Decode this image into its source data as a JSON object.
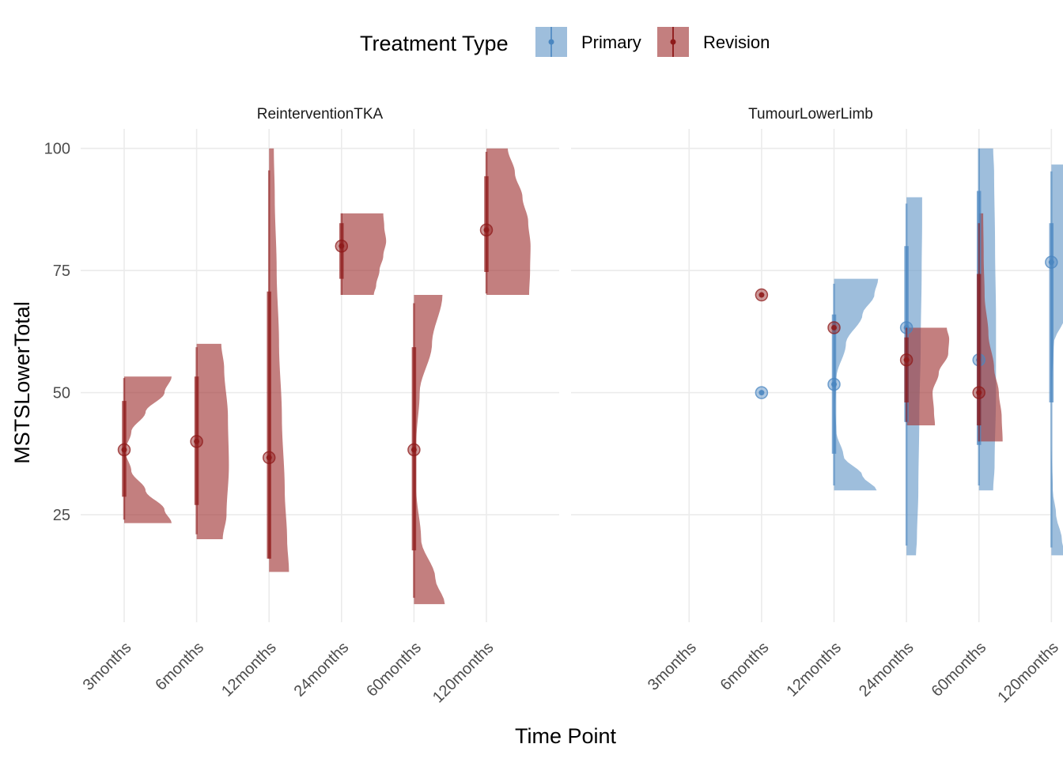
{
  "legend": {
    "title": "Treatment Type",
    "items": [
      {
        "label": "Primary",
        "color": "#4a86c0"
      },
      {
        "label": "Revision",
        "color": "#8e1a1a"
      }
    ]
  },
  "axes": {
    "xlabel": "Time Point",
    "ylabel": "MSTSLowerTotal"
  },
  "chart_data": {
    "type": "violin",
    "x_categories": [
      "3months",
      "6months",
      "12months",
      "24months",
      "60months",
      "120months"
    ],
    "ylim": [
      3,
      104
    ],
    "yticks": [
      25,
      50,
      75,
      100
    ],
    "grid": true,
    "legend_position": "top",
    "panels": [
      {
        "title": "ReinterventionTKA",
        "series": [
          {
            "name": "Revision",
            "groups": [
              {
                "category": "3months",
                "median": 38.3,
                "iqr": [
                  28.7,
                  48.3
                ],
                "range": [
                  24,
                  53
                ],
                "violin_range": [
                  23.3,
                  53.3
                ],
                "density": [
                  [
                    23.3,
                    1.0
                  ],
                  [
                    26,
                    0.85
                  ],
                  [
                    30,
                    0.45
                  ],
                  [
                    34,
                    0.15
                  ],
                  [
                    38,
                    0.02
                  ],
                  [
                    42,
                    0.15
                  ],
                  [
                    46,
                    0.45
                  ],
                  [
                    50,
                    0.85
                  ],
                  [
                    53.3,
                    1.0
                  ]
                ]
              },
              {
                "category": "6months",
                "median": 40,
                "iqr": [
                  27,
                  53.3
                ],
                "range": [
                  21,
                  59.3
                ],
                "violin_range": [
                  20,
                  60
                ],
                "density": [
                  [
                    20,
                    0.55
                  ],
                  [
                    25,
                    0.63
                  ],
                  [
                    35,
                    0.68
                  ],
                  [
                    45,
                    0.66
                  ],
                  [
                    55,
                    0.58
                  ],
                  [
                    60,
                    0.52
                  ]
                ]
              },
              {
                "category": "12months",
                "median": 36.7,
                "iqr": [
                  16,
                  70.7
                ],
                "range": [
                  16,
                  95.5
                ],
                "violin_range": [
                  13.3,
                  100
                ],
                "density": [
                  [
                    13.3,
                    0.42
                  ],
                  [
                    20,
                    0.38
                  ],
                  [
                    30,
                    0.33
                  ],
                  [
                    45,
                    0.27
                  ],
                  [
                    60,
                    0.21
                  ],
                  [
                    75,
                    0.16
                  ],
                  [
                    90,
                    0.12
                  ],
                  [
                    100,
                    0.1
                  ]
                ]
              },
              {
                "category": "24months",
                "median": 80,
                "iqr": [
                  73.3,
                  84.7
                ],
                "range": [
                  70,
                  86.7
                ],
                "violin_range": [
                  70,
                  86.7
                ],
                "density": [
                  [
                    70,
                    0.68
                  ],
                  [
                    72,
                    0.73
                  ],
                  [
                    75,
                    0.8
                  ],
                  [
                    78,
                    0.88
                  ],
                  [
                    81,
                    0.94
                  ],
                  [
                    84,
                    0.9
                  ],
                  [
                    86.7,
                    0.88
                  ]
                ]
              },
              {
                "category": "60months",
                "median": 38.3,
                "iqr": [
                  17.7,
                  59.3
                ],
                "range": [
                  8,
                  68.3
                ],
                "violin_range": [
                  6.7,
                  70
                ],
                "density": [
                  [
                    6.7,
                    0.65
                  ],
                  [
                    12,
                    0.45
                  ],
                  [
                    20,
                    0.15
                  ],
                  [
                    30,
                    0.05
                  ],
                  [
                    40,
                    0.05
                  ],
                  [
                    50,
                    0.12
                  ],
                  [
                    60,
                    0.38
                  ],
                  [
                    70,
                    0.6
                  ]
                ]
              },
              {
                "category": "120months",
                "median": 83.3,
                "iqr": [
                  74.7,
                  94.3
                ],
                "range": [
                  70.3,
                  99.3
                ],
                "violin_range": [
                  70,
                  100
                ],
                "density": [
                  [
                    70,
                    0.9
                  ],
                  [
                    75,
                    0.92
                  ],
                  [
                    80,
                    0.93
                  ],
                  [
                    85,
                    0.88
                  ],
                  [
                    90,
                    0.76
                  ],
                  [
                    95,
                    0.6
                  ],
                  [
                    100,
                    0.45
                  ]
                ]
              }
            ]
          }
        ]
      },
      {
        "title": "TumourLowerLimb",
        "series": [
          {
            "name": "Primary",
            "groups": [
              {
                "category": "6months",
                "median": 50,
                "iqr": [
                  50,
                  50
                ],
                "range": [
                  50,
                  50
                ]
              },
              {
                "category": "12months",
                "median": 51.7,
                "iqr": [
                  37.5,
                  66
                ],
                "range": [
                  31,
                  72.3
                ],
                "violin_range": [
                  30,
                  73.3
                ],
                "density": [
                  [
                    30,
                    0.9
                  ],
                  [
                    33,
                    0.6
                  ],
                  [
                    37,
                    0.2
                  ],
                  [
                    42,
                    0.05
                  ],
                  [
                    47,
                    0.02
                  ],
                  [
                    53,
                    0.05
                  ],
                  [
                    60,
                    0.25
                  ],
                  [
                    66,
                    0.6
                  ],
                  [
                    70,
                    0.85
                  ],
                  [
                    73.3,
                    0.93
                  ]
                ]
              },
              {
                "category": "24months",
                "median": 63.3,
                "iqr": [
                  44,
                  80
                ],
                "range": [
                  18.7,
                  88.7
                ],
                "violin_range": [
                  16.7,
                  90
                ],
                "density": [
                  [
                    16.7,
                    0.2
                  ],
                  [
                    20,
                    0.22
                  ],
                  [
                    30,
                    0.25
                  ],
                  [
                    45,
                    0.27
                  ],
                  [
                    60,
                    0.3
                  ],
                  [
                    75,
                    0.32
                  ],
                  [
                    85,
                    0.33
                  ],
                  [
                    90,
                    0.33
                  ]
                ]
              },
              {
                "category": "60months",
                "median": 56.7,
                "iqr": [
                  39.3,
                  91.3
                ],
                "range": [
                  31,
                  100
                ],
                "violin_range": [
                  30,
                  100
                ],
                "density": [
                  [
                    30,
                    0.3
                  ],
                  [
                    35,
                    0.33
                  ],
                  [
                    50,
                    0.36
                  ],
                  [
                    65,
                    0.36
                  ],
                  [
                    80,
                    0.34
                  ],
                  [
                    95,
                    0.32
                  ],
                  [
                    100,
                    0.3
                  ]
                ]
              },
              {
                "category": "120months",
                "median": 76.7,
                "iqr": [
                  48,
                  84.7
                ],
                "range": [
                  18.3,
                  95.3
                ],
                "violin_range": [
                  16.7,
                  96.7
                ],
                "density": [
                  [
                    16.7,
                    0.28
                  ],
                  [
                    20,
                    0.22
                  ],
                  [
                    25,
                    0.1
                  ],
                  [
                    30,
                    0.03
                  ],
                  [
                    40,
                    0.0
                  ],
                  [
                    50,
                    0.0
                  ],
                  [
                    60,
                    0.05
                  ],
                  [
                    66,
                    0.3
                  ],
                  [
                    70,
                    0.65
                  ],
                  [
                    74,
                    0.95
                  ],
                  [
                    77,
                    1.0
                  ],
                  [
                    80,
                    0.9
                  ],
                  [
                    85,
                    0.35
                  ],
                  [
                    90,
                    0.28
                  ],
                  [
                    96.7,
                    0.25
                  ]
                ]
              }
            ]
          },
          {
            "name": "Revision",
            "groups": [
              {
                "category": "6months",
                "median": 70,
                "iqr": [
                  70,
                  70
                ],
                "range": [
                  70,
                  70
                ]
              },
              {
                "category": "12months",
                "median": 63.3,
                "iqr": [
                  63.3,
                  63.3
                ],
                "range": [
                  63.3,
                  63.3
                ]
              },
              {
                "category": "24months",
                "median": 56.7,
                "iqr": [
                  48,
                  61.3
                ],
                "range": [
                  44,
                  63.3
                ],
                "violin_range": [
                  43.3,
                  63.3
                ],
                "density": [
                  [
                    43.3,
                    0.6
                  ],
                  [
                    46,
                    0.58
                  ],
                  [
                    50,
                    0.55
                  ],
                  [
                    54,
                    0.68
                  ],
                  [
                    58,
                    0.88
                  ],
                  [
                    61,
                    0.9
                  ],
                  [
                    63.3,
                    0.85
                  ]
                ]
              },
              {
                "category": "60months",
                "median": 50,
                "iqr": [
                  43.3,
                  74.3
                ],
                "range": [
                  40,
                  84.7
                ],
                "violin_range": [
                  40,
                  86.7
                ],
                "density": [
                  [
                    40,
                    0.5
                  ],
                  [
                    45,
                    0.48
                  ],
                  [
                    50,
                    0.42
                  ],
                  [
                    55,
                    0.32
                  ],
                  [
                    62,
                    0.2
                  ],
                  [
                    70,
                    0.12
                  ],
                  [
                    78,
                    0.1
                  ],
                  [
                    86.7,
                    0.09
                  ]
                ]
              }
            ]
          }
        ]
      }
    ]
  }
}
